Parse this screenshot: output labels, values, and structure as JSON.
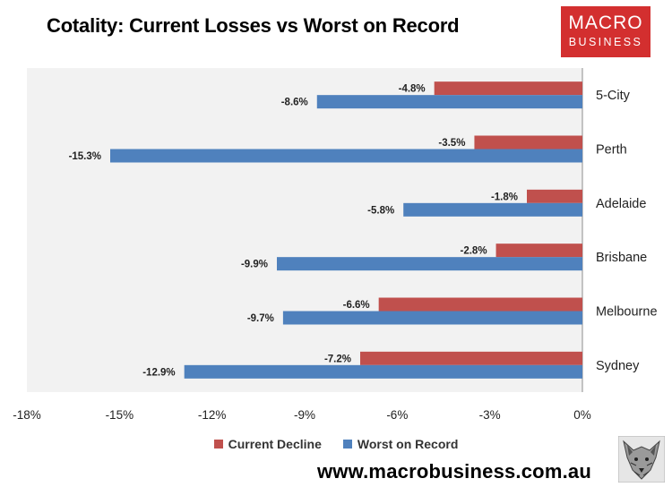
{
  "header": {
    "title": "Cotality: Current Losses vs Worst on Record"
  },
  "logo": {
    "line1": "MACRO",
    "line2": "BUSINESS",
    "color": "#d32f2f"
  },
  "footer": {
    "website": "www.macrobusiness.com.au"
  },
  "colors": {
    "current": "#c0504d",
    "worst": "#4f81bd",
    "plot_bg": "#f2f2f2"
  },
  "chart_data": {
    "type": "bar",
    "orientation": "horizontal",
    "title": "Cotality: Current Losses vs Worst on Record",
    "categories": [
      "5-City",
      "Perth",
      "Adelaide",
      "Brisbane",
      "Melbourne",
      "Sydney"
    ],
    "series": [
      {
        "name": "Current Decline",
        "values": [
          -4.8,
          -3.5,
          -1.8,
          -2.8,
          -6.6,
          -7.2
        ],
        "color": "#c0504d"
      },
      {
        "name": "Worst on Record",
        "values": [
          -8.6,
          -15.3,
          -5.8,
          -9.9,
          -9.7,
          -12.9
        ],
        "color": "#4f81bd"
      }
    ],
    "data_labels": {
      "Current Decline": [
        "-4.8%",
        "-3.5%",
        "-1.8%",
        "-2.8%",
        "-6.6%",
        "-7.2%"
      ],
      "Worst on Record": [
        "-8.6%",
        "-15.3%",
        "-5.8%",
        "-9.9%",
        "-9.7%",
        "-12.9%"
      ]
    },
    "xlim": [
      -18,
      0
    ],
    "xticks": [
      -18,
      -15,
      -12,
      -9,
      -6,
      -3,
      0
    ],
    "xtick_labels": [
      "-18%",
      "-15%",
      "-12%",
      "-9%",
      "-6%",
      "-3%",
      "0%"
    ],
    "legend": {
      "position": "bottom",
      "entries": [
        "Current Decline",
        "Worst on Record"
      ]
    },
    "grid": false
  }
}
